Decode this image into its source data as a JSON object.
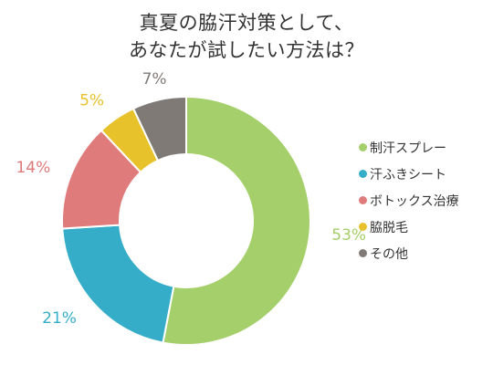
{
  "chart_data": {
    "type": "pie",
    "title_lines": [
      "真夏の脇汗対策として、",
      "あなたが試したい方法は？"
    ],
    "categories": [
      "制汗スプレー",
      "汗ふきシート",
      "ボトックス治療",
      "脇脱毛",
      "その他"
    ],
    "values": [
      53,
      21,
      14,
      5,
      7
    ],
    "value_labels": [
      "53%",
      "21%",
      "14%",
      "5%",
      "7%"
    ],
    "colors": [
      "#a5cf6b",
      "#36adc8",
      "#e07b7b",
      "#e8c22b",
      "#807a76"
    ],
    "legend_position": "right",
    "donut": true
  }
}
